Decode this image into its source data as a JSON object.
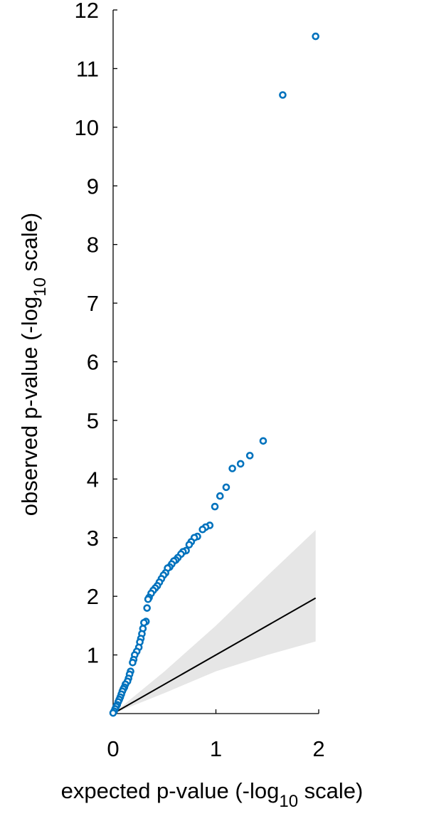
{
  "chart_data": {
    "type": "scatter",
    "x_label": [
      "expected p-value (-log",
      "10",
      " scale)"
    ],
    "y_label": [
      "observed p-value (-log",
      "10",
      " scale)"
    ],
    "xlim": [
      0,
      2
    ],
    "xticks": [
      0,
      1,
      2
    ],
    "ylim": [
      0,
      12
    ],
    "yticks": [
      1,
      2,
      3,
      4,
      5,
      6,
      7,
      8,
      9,
      10,
      11,
      12
    ],
    "band": {
      "color": "#e6e6e6",
      "x": [
        0,
        0.5,
        1,
        1.5,
        1.97
      ],
      "upper": [
        0,
        0.72,
        1.5,
        2.35,
        3.13
      ],
      "lower": [
        0,
        0.35,
        0.72,
        1.0,
        1.23
      ]
    },
    "reference_line": {
      "color": "#000000",
      "x": [
        0,
        1.97
      ],
      "y": [
        0,
        1.97
      ]
    },
    "series": [
      {
        "color": "#0072bd",
        "x": [
          1.97,
          1.65,
          1.46,
          1.33,
          1.24,
          1.16,
          1.1,
          1.04,
          0.99,
          0.94,
          0.9,
          0.87,
          0.82,
          0.79,
          0.76,
          0.74,
          0.71,
          0.68,
          0.66,
          0.63,
          0.61,
          0.59,
          0.57,
          0.55,
          0.53,
          0.51,
          0.49,
          0.47,
          0.45,
          0.43,
          0.41,
          0.39,
          0.37,
          0.35,
          0.34,
          0.33,
          0.32,
          0.3,
          0.29,
          0.28,
          0.27,
          0.26,
          0.25,
          0.23,
          0.21,
          0.2,
          0.19,
          0.17,
          0.16,
          0.15,
          0.14,
          0.12,
          0.11,
          0.1,
          0.09,
          0.08,
          0.07,
          0.06,
          0.05,
          0.04,
          0.03,
          0.02,
          0.01,
          0.0
        ],
        "values": [
          11.55,
          10.55,
          4.65,
          4.4,
          4.26,
          4.18,
          3.86,
          3.71,
          3.53,
          3.21,
          3.18,
          3.14,
          3.02,
          3.0,
          2.93,
          2.88,
          2.78,
          2.76,
          2.72,
          2.66,
          2.62,
          2.6,
          2.55,
          2.5,
          2.48,
          2.4,
          2.36,
          2.3,
          2.24,
          2.18,
          2.14,
          2.1,
          2.05,
          1.98,
          1.95,
          1.8,
          1.57,
          1.55,
          1.45,
          1.36,
          1.28,
          1.22,
          1.13,
          1.06,
          1.0,
          0.92,
          0.87,
          0.72,
          0.67,
          0.6,
          0.55,
          0.5,
          0.45,
          0.42,
          0.38,
          0.33,
          0.28,
          0.24,
          0.2,
          0.15,
          0.12,
          0.08,
          0.04,
          0.01
        ]
      }
    ]
  }
}
